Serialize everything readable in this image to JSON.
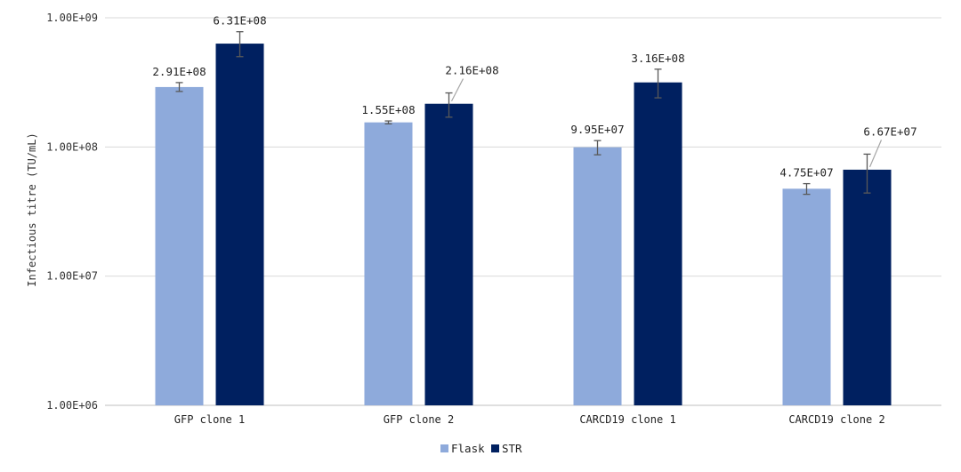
{
  "chart_data": {
    "type": "bar",
    "ylabel": "Infectious titre (TU/mL)",
    "xlabel": "",
    "y_scale": "log",
    "ylim": [
      1000000,
      1000000000
    ],
    "y_ticks": [
      {
        "value": 1000000,
        "label": "1.00E+06"
      },
      {
        "value": 10000000,
        "label": "1.00E+07"
      },
      {
        "value": 100000000,
        "label": "1.00E+08"
      },
      {
        "value": 1000000000,
        "label": "1.00E+09"
      }
    ],
    "grid": true,
    "legend_position": "bottom",
    "categories": [
      "GFP clone 1",
      "GFP clone 2",
      "CARCD19 clone 1",
      "CARCD19 clone 2"
    ],
    "series": [
      {
        "name": "Flask",
        "color": "#8eaadb",
        "values": [
          291000000,
          155000000,
          99500000,
          47500000
        ],
        "labels": [
          "2.91E+08",
          "1.55E+08",
          "9.95E+07",
          "4.75E+07"
        ],
        "error_low": [
          269000000,
          151000000,
          87000000,
          43000000
        ],
        "error_high": [
          315000000,
          159000000,
          112000000,
          52000000
        ]
      },
      {
        "name": "STR",
        "color": "#002060",
        "values": [
          631000000,
          216000000,
          316000000,
          66700000
        ],
        "labels": [
          "6.31E+08",
          "2.16E+08",
          "3.16E+08",
          "6.67E+07"
        ],
        "error_low": [
          500000000,
          170000000,
          240000000,
          44000000
        ],
        "error_high": [
          780000000,
          262000000,
          400000000,
          88000000
        ]
      }
    ]
  }
}
